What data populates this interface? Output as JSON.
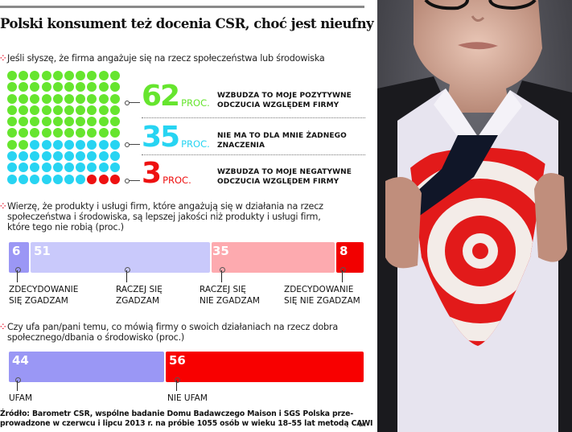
{
  "header": {
    "title": "Polski konsument też docenia CSR, choć jest nieufny"
  },
  "section1": {
    "question": "Jeśli słyszę, że firma angażuje się na rzecz społeczeństwa lub środowiska",
    "items": [
      {
        "value": "62",
        "unit": "PROC.",
        "desc_line1": "WZBUDZA TO MOJE POZYTYWNE",
        "desc_line2": "ODCZUCIA WZGLĘDEM FIRMY",
        "color": "#66e52e"
      },
      {
        "value": "35",
        "unit": "PROC.",
        "desc_line1": "NIE MA TO DLA MNIE ŻADNEGO",
        "desc_line2": "ZNACZENIA",
        "color": "#27d4f2"
      },
      {
        "value": "3",
        "unit": "PROC.",
        "desc_line1": "WZBUDZA TO MOJE NEGATYWNE",
        "desc_line2": "ODCZUCIA WZGLĘDEM FIRMY",
        "color": "#ee1111"
      }
    ]
  },
  "section2": {
    "question": "Wierzę, że produkty i usługi firm, które angażują się w działania na rzecz społeczeństwa i środowiska, są lepszej jakości niż produkty i usługi firm, które tego nie robią (proc.)",
    "segments": [
      {
        "value": "6",
        "label_line1": "ZDECYDOWANIE",
        "label_line2": "SIĘ ZGADZAM",
        "color": "#9b97f5"
      },
      {
        "value": "51",
        "label_line1": "RACZEJ SIĘ",
        "label_line2": "ZGADZAM",
        "color": "#c9c9fb"
      },
      {
        "value": "35",
        "label_line1": "RACZEJ SIĘ",
        "label_line2": "NIE ZGADZAM",
        "color": "#fdaaaf"
      },
      {
        "value": "8",
        "label_line1": "ZDECYDOWANIE",
        "label_line2": "SIĘ NIE ZGADZAM",
        "color": "#f20000"
      }
    ]
  },
  "section3": {
    "question": "Czy ufa pan/pani temu, co mówią firmy o swoich działaniach na rzecz dobra społecznego/dbania o środowisko (proc.)",
    "segments": [
      {
        "value": "44",
        "label": "UFAM",
        "color": "#9a97f5"
      },
      {
        "value": "56",
        "label": "NIE UFAM",
        "color": "#f80000"
      }
    ]
  },
  "footer": {
    "source_line1": "Źródło: Barometr CSR, wspólne badanie Domu Badawczego Maison i SGS Polska prze-",
    "source_line2": "prowadzone w czerwcu i lipcu 2013 r. na próbie 1055 osób w wieku 18–55 lat metodą CAWI",
    "credit": "ŁR"
  },
  "bullet_icon": "⁘",
  "photo": {
    "description": "man in suit opening white shirt revealing red and white target on t-shirt"
  },
  "chart_data": [
    {
      "type": "waffle",
      "title": "Jeśli słyszę, że firma angażuje się na rzecz społeczeństwa lub środowiska",
      "grid": [
        10,
        10
      ],
      "categories": [
        "Wzbudza to moje pozytywne odczucia względem firmy",
        "Nie ma to dla mnie żadnego znaczenia",
        "Wzbudza to moje negatywne odczucia względem firmy"
      ],
      "values": [
        62,
        35,
        3
      ],
      "unit": "proc.",
      "colors": [
        "#66e52e",
        "#27d4f2",
        "#ee1111"
      ]
    },
    {
      "type": "bar",
      "orientation": "horizontal-stacked",
      "title": "Wierzę, że produkty i usługi firm, które angażują się w działania na rzecz społeczeństwa i środowiska, są lepszej jakości niż produkty i usługi firm, które tego nie robią (proc.)",
      "categories": [
        "Zdecydowanie się zgadzam",
        "Raczej się zgadzam",
        "Raczej się nie zgadzam",
        "Zdecydowanie się nie zgadzam"
      ],
      "values": [
        6,
        51,
        35,
        8
      ],
      "unit": "proc.",
      "colors": [
        "#9b97f5",
        "#c9c9fb",
        "#fdaaaf",
        "#f20000"
      ]
    },
    {
      "type": "bar",
      "orientation": "horizontal-stacked",
      "title": "Czy ufa pan/pani temu, co mówią firmy o swoich działaniach na rzecz dobra społecznego/dbania o środowisko (proc.)",
      "categories": [
        "Ufam",
        "Nie ufam"
      ],
      "values": [
        44,
        56
      ],
      "unit": "proc.",
      "colors": [
        "#9a97f5",
        "#f80000"
      ]
    }
  ]
}
